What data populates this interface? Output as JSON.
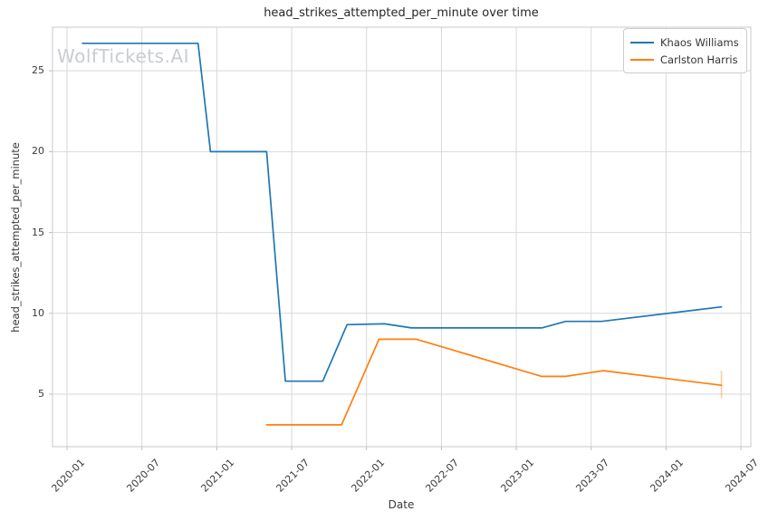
{
  "chart_data": {
    "type": "line",
    "title": "head_strikes_attempted_per_minute over time",
    "xlabel": "Date",
    "ylabel": "head_strikes_attempted_per_minute",
    "watermark": "WolfTickets.AI",
    "grid": true,
    "legend_position": "upper right",
    "x_domain": [
      2019.903,
      2024.566
    ],
    "y_domain": [
      1.75,
      27.7
    ],
    "x_ticks": [
      {
        "t": 2020.0,
        "label": "2020-01"
      },
      {
        "t": 2020.5,
        "label": "2020-07"
      },
      {
        "t": 2021.0,
        "label": "2021-01"
      },
      {
        "t": 2021.5,
        "label": "2021-07"
      },
      {
        "t": 2022.0,
        "label": "2022-01"
      },
      {
        "t": 2022.5,
        "label": "2022-07"
      },
      {
        "t": 2023.0,
        "label": "2023-01"
      },
      {
        "t": 2023.5,
        "label": "2023-07"
      },
      {
        "t": 2024.0,
        "label": "2024-01"
      },
      {
        "t": 2024.5,
        "label": "2024-07"
      }
    ],
    "y_ticks": [
      {
        "v": 5,
        "label": "5"
      },
      {
        "v": 10,
        "label": "10"
      },
      {
        "v": 15,
        "label": "15"
      },
      {
        "v": 20,
        "label": "20"
      },
      {
        "v": 25,
        "label": "25"
      }
    ],
    "colors": {
      "khaos_williams": "#1f77b4",
      "carlston_harris": "#ff7f0e",
      "error_bar": "rgba(255,127,14,0.4)",
      "grid": "#d9d9d9",
      "spine": "#c8c8c8",
      "tick": "#bdbdbd",
      "watermark": "#c9ccd1"
    },
    "series": [
      {
        "name": "Khaos Williams",
        "color": "#1f77b4",
        "points": [
          {
            "date": "2020-02",
            "t": 2020.103,
            "value": 26.7
          },
          {
            "date": "2020-11",
            "t": 2020.875,
            "value": 26.7
          },
          {
            "date": "2020-12",
            "t": 2020.958,
            "value": 20.0
          },
          {
            "date": "2021-05",
            "t": 2021.333,
            "value": 20.0
          },
          {
            "date": "2021-06",
            "t": 2021.458,
            "value": 5.8
          },
          {
            "date": "2021-09",
            "t": 2021.708,
            "value": 5.8
          },
          {
            "date": "2021-11",
            "t": 2021.87,
            "value": 9.3
          },
          {
            "date": "2022-02",
            "t": 2022.12,
            "value": 9.35
          },
          {
            "date": "2022-04",
            "t": 2022.3,
            "value": 9.1
          },
          {
            "date": "2023-03",
            "t": 2023.17,
            "value": 9.1
          },
          {
            "date": "2023-05",
            "t": 2023.33,
            "value": 9.5
          },
          {
            "date": "2023-08",
            "t": 2023.57,
            "value": 9.5
          },
          {
            "date": "2024-05",
            "t": 2024.37,
            "value": 10.4
          }
        ]
      },
      {
        "name": "Carlston Harris",
        "color": "#ff7f0e",
        "points": [
          {
            "date": "2021-05",
            "t": 2021.333,
            "value": 3.1
          },
          {
            "date": "2021-11",
            "t": 2021.833,
            "value": 3.1
          },
          {
            "date": "2022-02",
            "t": 2022.083,
            "value": 8.4
          },
          {
            "date": "2022-05",
            "t": 2022.333,
            "value": 8.4
          },
          {
            "date": "2023-03",
            "t": 2023.17,
            "value": 6.1
          },
          {
            "date": "2023-05",
            "t": 2023.33,
            "value": 6.1
          },
          {
            "date": "2023-08",
            "t": 2023.58,
            "value": 6.45
          },
          {
            "date": "2024-05",
            "t": 2024.37,
            "value": 5.55
          }
        ],
        "error_bar": {
          "date": "2024-05",
          "t": 2024.37,
          "low": 4.75,
          "high": 6.45
        }
      }
    ]
  }
}
